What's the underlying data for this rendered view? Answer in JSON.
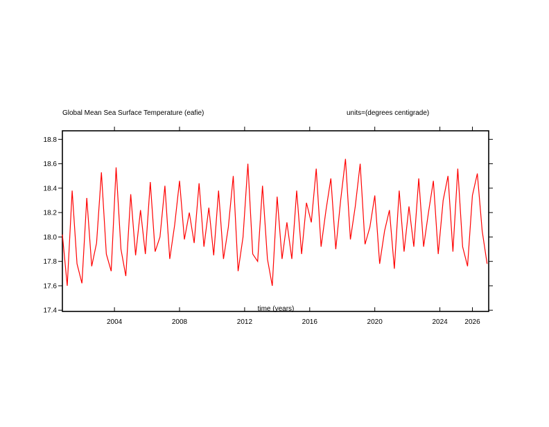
{
  "chart_data": {
    "type": "line",
    "title": "Global Mean Sea Surface Temperature (eafie)",
    "units_label": "units=(degrees centigrade)",
    "xlabel": "time (years)",
    "ylabel": "",
    "xlim": [
      2000.8,
      2027.0
    ],
    "ylim": [
      17.39,
      18.87
    ],
    "x_ticks": [
      "2004",
      "2008",
      "2012",
      "2016",
      "2020",
      "2024",
      "2026"
    ],
    "y_ticks": [
      "17.4",
      "17.6",
      "17.8",
      "18.0",
      "18.2",
      "18.4",
      "18.6",
      "18.8"
    ],
    "grid": false,
    "series": [
      {
        "color": "#ff0000",
        "x": [
          2000.8,
          2001.1,
          2001.4,
          2001.7,
          2002.0,
          2002.3,
          2002.6,
          2002.9,
          2003.2,
          2003.5,
          2003.8,
          2004.1,
          2004.4,
          2004.7,
          2005.0,
          2005.3,
          2005.6,
          2005.9,
          2006.2,
          2006.5,
          2006.8,
          2007.1,
          2007.4,
          2007.7,
          2008.0,
          2008.3,
          2008.6,
          2008.9,
          2009.2,
          2009.5,
          2009.8,
          2010.1,
          2010.4,
          2010.7,
          2011.0,
          2011.3,
          2011.6,
          2011.9,
          2012.2,
          2012.5,
          2012.8,
          2013.1,
          2013.4,
          2013.7,
          2014.0,
          2014.3,
          2014.6,
          2014.9,
          2015.2,
          2015.5,
          2015.8,
          2016.1,
          2016.4,
          2016.7,
          2017.0,
          2017.3,
          2017.6,
          2017.9,
          2018.2,
          2018.5,
          2018.8,
          2019.1,
          2019.4,
          2019.7,
          2020.0,
          2020.3,
          2020.6,
          2020.9,
          2021.2,
          2021.5,
          2021.8,
          2022.1,
          2022.4,
          2022.7,
          2023.0,
          2023.3,
          2023.6,
          2023.9,
          2024.2,
          2024.5,
          2024.8,
          2025.1,
          2025.4,
          2025.7,
          2026.0,
          2026.3,
          2026.6,
          2026.9
        ],
        "y": [
          18.02,
          17.6,
          18.38,
          17.78,
          17.62,
          18.32,
          17.76,
          17.95,
          18.53,
          17.86,
          17.72,
          18.57,
          17.9,
          17.68,
          18.35,
          17.85,
          18.22,
          17.86,
          18.45,
          17.88,
          18.0,
          18.42,
          17.82,
          18.1,
          18.46,
          17.98,
          18.2,
          17.95,
          18.44,
          17.92,
          18.24,
          17.85,
          18.38,
          17.82,
          18.08,
          18.5,
          17.72,
          18.0,
          18.6,
          17.86,
          17.8,
          18.42,
          17.82,
          17.6,
          18.33,
          17.82,
          18.12,
          17.82,
          18.38,
          17.86,
          18.28,
          18.12,
          18.56,
          17.92,
          18.22,
          18.48,
          17.9,
          18.3,
          18.64,
          17.98,
          18.25,
          18.6,
          17.94,
          18.08,
          18.34,
          17.78,
          18.05,
          18.22,
          17.74,
          18.38,
          17.88,
          18.25,
          17.92,
          18.48,
          17.92,
          18.2,
          18.46,
          17.86,
          18.3,
          18.5,
          17.88,
          18.56,
          17.92,
          17.76,
          18.34,
          18.52,
          18.05,
          17.78
        ]
      }
    ]
  }
}
